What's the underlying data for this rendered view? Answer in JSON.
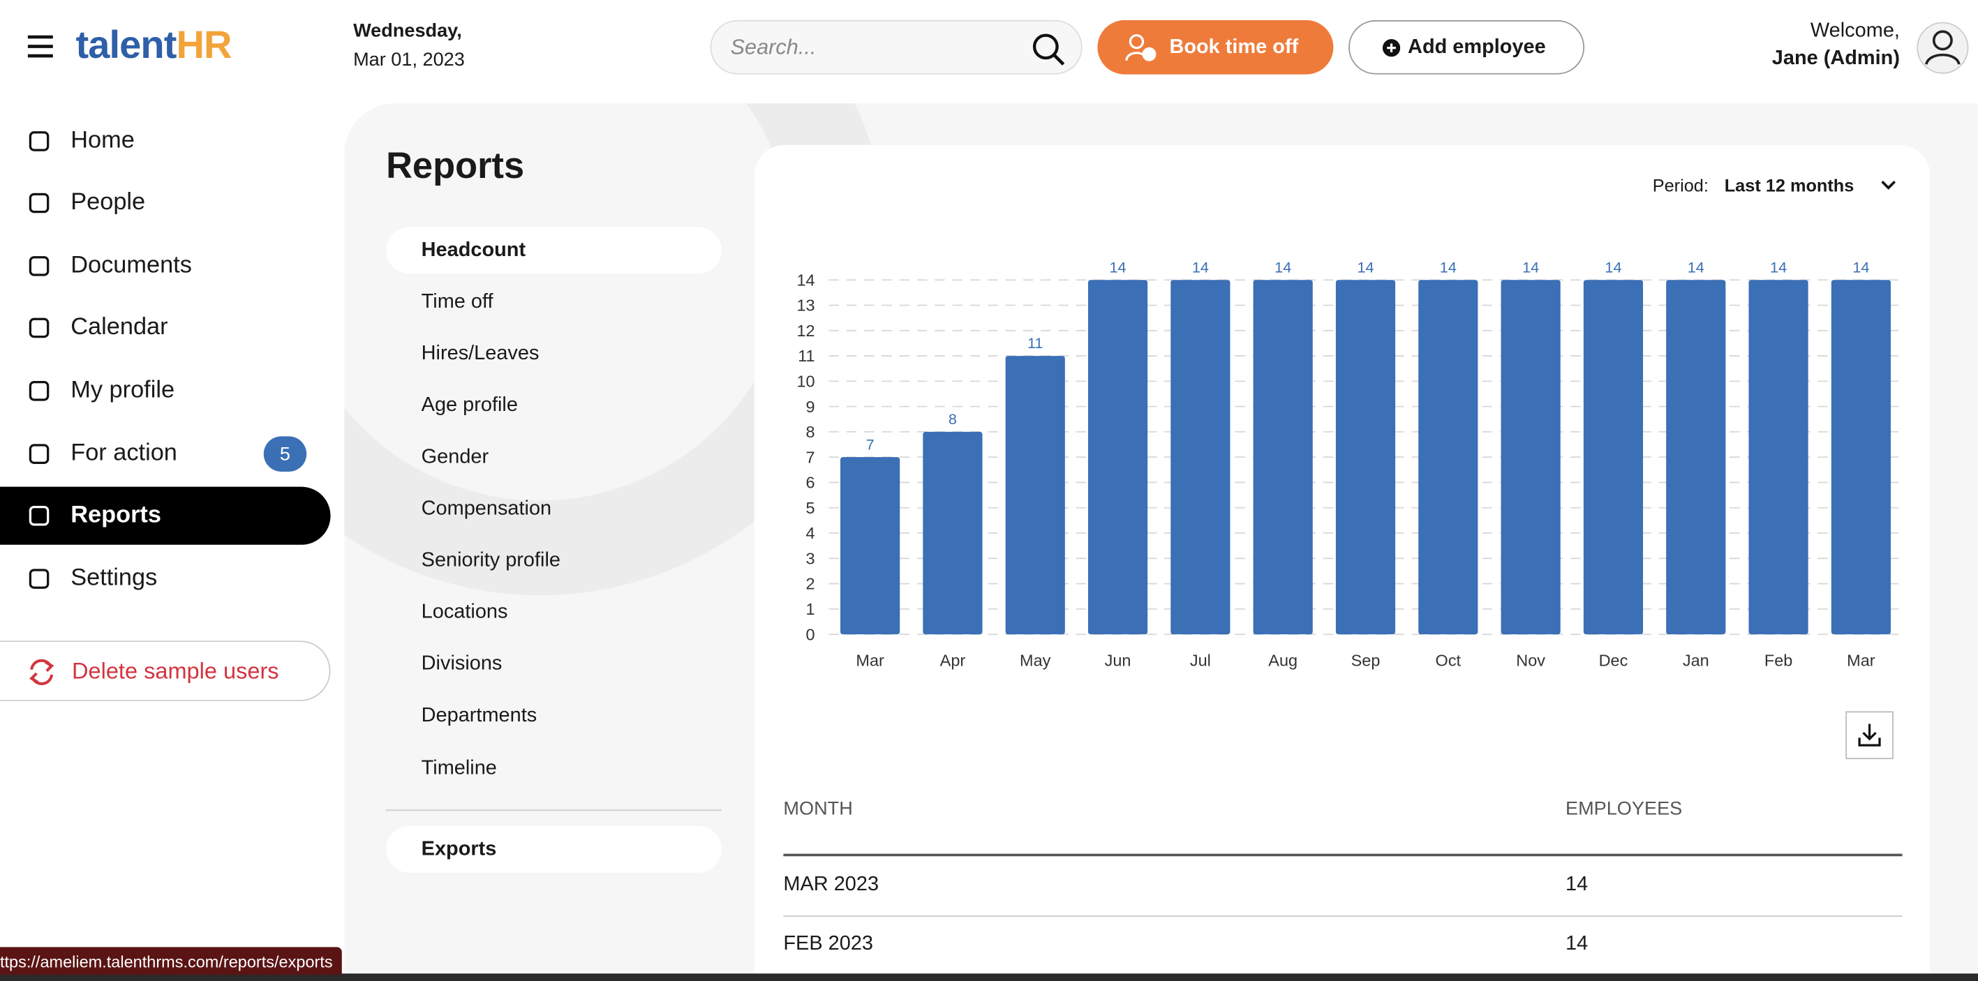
{
  "header": {
    "logo_main": "talent",
    "logo_accent": "HR",
    "day": "Wednesday,",
    "date": "Mar 01, 2023",
    "search_placeholder": "Search...",
    "book_button": "Book time off",
    "add_button": "Add employee",
    "welcome": "Welcome,",
    "user": "Jane (Admin)"
  },
  "nav": {
    "items": [
      "Home",
      "People",
      "Documents",
      "Calendar",
      "My profile",
      "For action",
      "Reports",
      "Settings"
    ],
    "badge": "5",
    "delete_button": "Delete sample users"
  },
  "reports": {
    "title": "Reports",
    "menu": [
      "Headcount",
      "Time off",
      "Hires/Leaves",
      "Age profile",
      "Gender",
      "Compensation",
      "Seniority profile",
      "Locations",
      "Divisions",
      "Departments",
      "Timeline"
    ],
    "exports": "Exports"
  },
  "period": {
    "label": "Period:",
    "value": "Last 12 months"
  },
  "chart_data": {
    "type": "bar",
    "categories": [
      "Mar",
      "Apr",
      "May",
      "Jun",
      "Jul",
      "Aug",
      "Sep",
      "Oct",
      "Nov",
      "Dec",
      "Jan",
      "Feb",
      "Mar"
    ],
    "values": [
      7,
      8,
      11,
      14,
      14,
      14,
      14,
      14,
      14,
      14,
      14,
      14,
      14
    ],
    "color": "#3b6fb6",
    "ylim": [
      0,
      14
    ],
    "yticks": [
      0,
      1,
      2,
      3,
      4,
      5,
      6,
      7,
      8,
      9,
      10,
      11,
      12,
      13,
      14
    ],
    "grid": true
  },
  "table": {
    "headers": [
      "MONTH",
      "EMPLOYEES"
    ],
    "rows": [
      [
        "MAR 2023",
        "14"
      ],
      [
        "FEB 2023",
        "14"
      ]
    ]
  },
  "status_url": "ttps://ameliem.talenthrms.com/reports/exports"
}
